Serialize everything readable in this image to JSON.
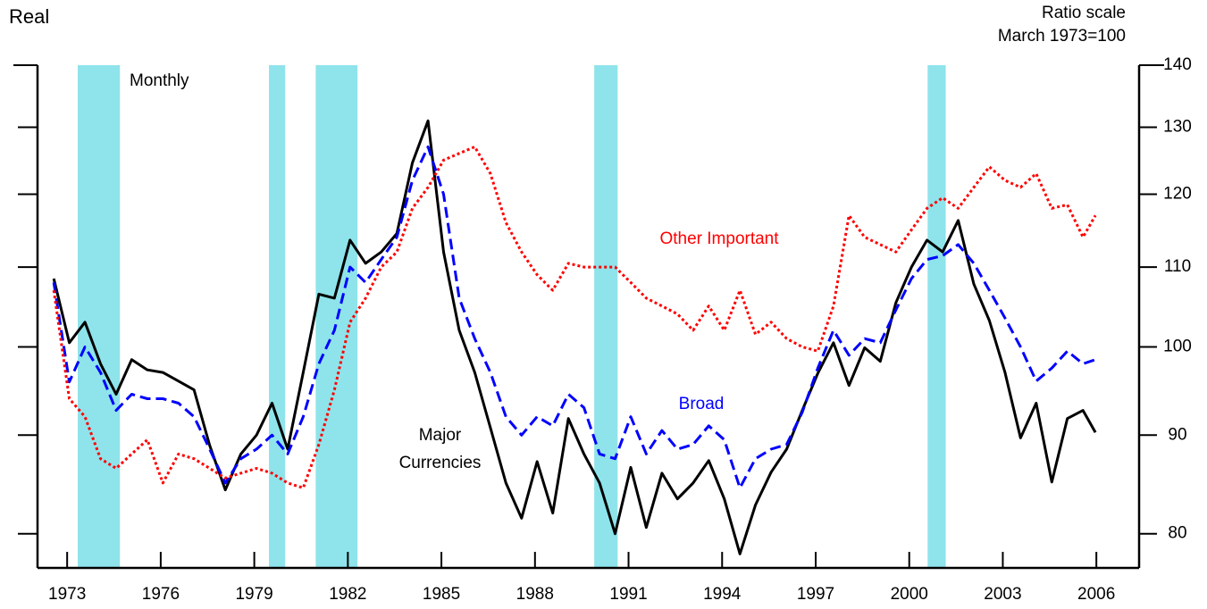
{
  "chart_data": {
    "type": "line",
    "title": "Real",
    "y_label": "Ratio scale",
    "subtitle": "March 1973=100",
    "note": "Monthly",
    "x": [
      1973.0,
      1973.5,
      1974.0,
      1974.5,
      1975.0,
      1975.5,
      1976.0,
      1976.5,
      1977.0,
      1977.5,
      1978.0,
      1978.5,
      1979.0,
      1979.5,
      1980.0,
      1980.5,
      1981.0,
      1981.5,
      1982.0,
      1982.5,
      1983.0,
      1983.5,
      1984.0,
      1984.5,
      1985.0,
      1985.5,
      1986.0,
      1986.5,
      1987.0,
      1987.5,
      1988.0,
      1988.5,
      1989.0,
      1989.5,
      1990.0,
      1990.5,
      1991.0,
      1991.5,
      1992.0,
      1992.5,
      1993.0,
      1993.5,
      1994.0,
      1994.5,
      1995.0,
      1995.5,
      1996.0,
      1996.5,
      1997.0,
      1997.5,
      1998.0,
      1998.5,
      1999.0,
      1999.5,
      2000.0,
      2000.5,
      2001.0,
      2001.5,
      2002.0,
      2002.5,
      2003.0,
      2003.5,
      2004.0,
      2004.5,
      2005.0,
      2005.5,
      2006.0,
      2006.4
    ],
    "series": [
      {
        "name": "Major Currencies",
        "color": "#000000",
        "dash": "none",
        "values": [
          108.5,
          100.5,
          103,
          98,
          94.5,
          98.5,
          97.3,
          97,
          96,
          95,
          88.9,
          84.3,
          88,
          90,
          93.5,
          88.5,
          97,
          106.5,
          106,
          113.6,
          110.5,
          112,
          114.5,
          124.6,
          131,
          112,
          102,
          97,
          90.8,
          85,
          81.5,
          87.2,
          82,
          91.8,
          88,
          85,
          80,
          86.6,
          80.6,
          86,
          83.4,
          85,
          87.3,
          83.4,
          78.1,
          82.8,
          86.1,
          88.5,
          92.7,
          96.9,
          100.5,
          95.5,
          99.9,
          98.3,
          105.4,
          110,
          113.6,
          112,
          116.3,
          107.8,
          103.2,
          97,
          89.7,
          93.5,
          85.1,
          91.8,
          92.7,
          90.3
        ]
      },
      {
        "name": "Broad",
        "color": "#0000ff",
        "dash": "12,6",
        "values": [
          108,
          95.9,
          100,
          97,
          92.7,
          94.5,
          94,
          94,
          93.5,
          92,
          88.5,
          85,
          87.5,
          88.5,
          90,
          88,
          92,
          98,
          102,
          110,
          108,
          111,
          114,
          122,
          127,
          120,
          106,
          101,
          97,
          92,
          90,
          92,
          91,
          94.5,
          93,
          88,
          87.5,
          92,
          88,
          90.5,
          88.5,
          89,
          91,
          89.5,
          84.5,
          87.5,
          88.5,
          89,
          92.5,
          97.5,
          102,
          99,
          101,
          100.5,
          104.5,
          108.5,
          111,
          111.5,
          113,
          110.5,
          107,
          103.5,
          100,
          96,
          97.5,
          99.5,
          98,
          98.5
        ]
      },
      {
        "name": "Other Important",
        "color": "#ff0000",
        "dash": "3,3",
        "values": [
          107,
          94,
          92,
          87.5,
          86.5,
          88,
          89.5,
          85,
          88,
          87.5,
          86.5,
          85.5,
          86,
          86.5,
          86,
          85,
          84.5,
          89,
          95,
          103,
          106,
          110,
          112,
          118,
          121,
          125,
          126,
          127,
          123,
          116,
          112,
          109,
          107,
          110.5,
          110,
          110,
          110,
          108,
          106,
          105,
          104,
          102,
          105,
          102,
          107,
          101.5,
          103,
          101,
          100,
          99.5,
          105,
          117,
          114,
          113,
          112,
          115,
          118,
          119.5,
          118,
          121,
          124,
          122,
          121,
          123,
          118,
          118.5,
          114,
          117
        ]
      }
    ],
    "shaded_periods": [
      [
        1973.77,
        1975.12
      ],
      [
        1979.9,
        1980.42
      ],
      [
        1981.4,
        1982.74
      ],
      [
        1990.33,
        1991.08
      ],
      [
        2001.02,
        2001.6
      ]
    ],
    "shade_color": "#8ee4ea",
    "log_scale": true,
    "xlim": [
      1972.48,
      2007.8
    ],
    "ylim": [
      76.8,
      140
    ],
    "yticks": [
      80,
      90,
      100,
      110,
      120,
      130,
      140
    ],
    "xticks": [
      {
        "value": 1973.43,
        "label": "1973"
      },
      {
        "value": 1976.43,
        "label": "1976"
      },
      {
        "value": 1979.43,
        "label": "1979"
      },
      {
        "value": 1982.43,
        "label": "1982"
      },
      {
        "value": 1985.43,
        "label": "1985"
      },
      {
        "value": 1988.43,
        "label": "1988"
      },
      {
        "value": 1991.43,
        "label": "1991"
      },
      {
        "value": 1994.43,
        "label": "1994"
      },
      {
        "value": 1997.43,
        "label": "1997"
      },
      {
        "value": 2000.43,
        "label": "2000"
      },
      {
        "value": 2003.43,
        "label": "2003"
      },
      {
        "value": 2006.43,
        "label": "2006"
      }
    ]
  }
}
